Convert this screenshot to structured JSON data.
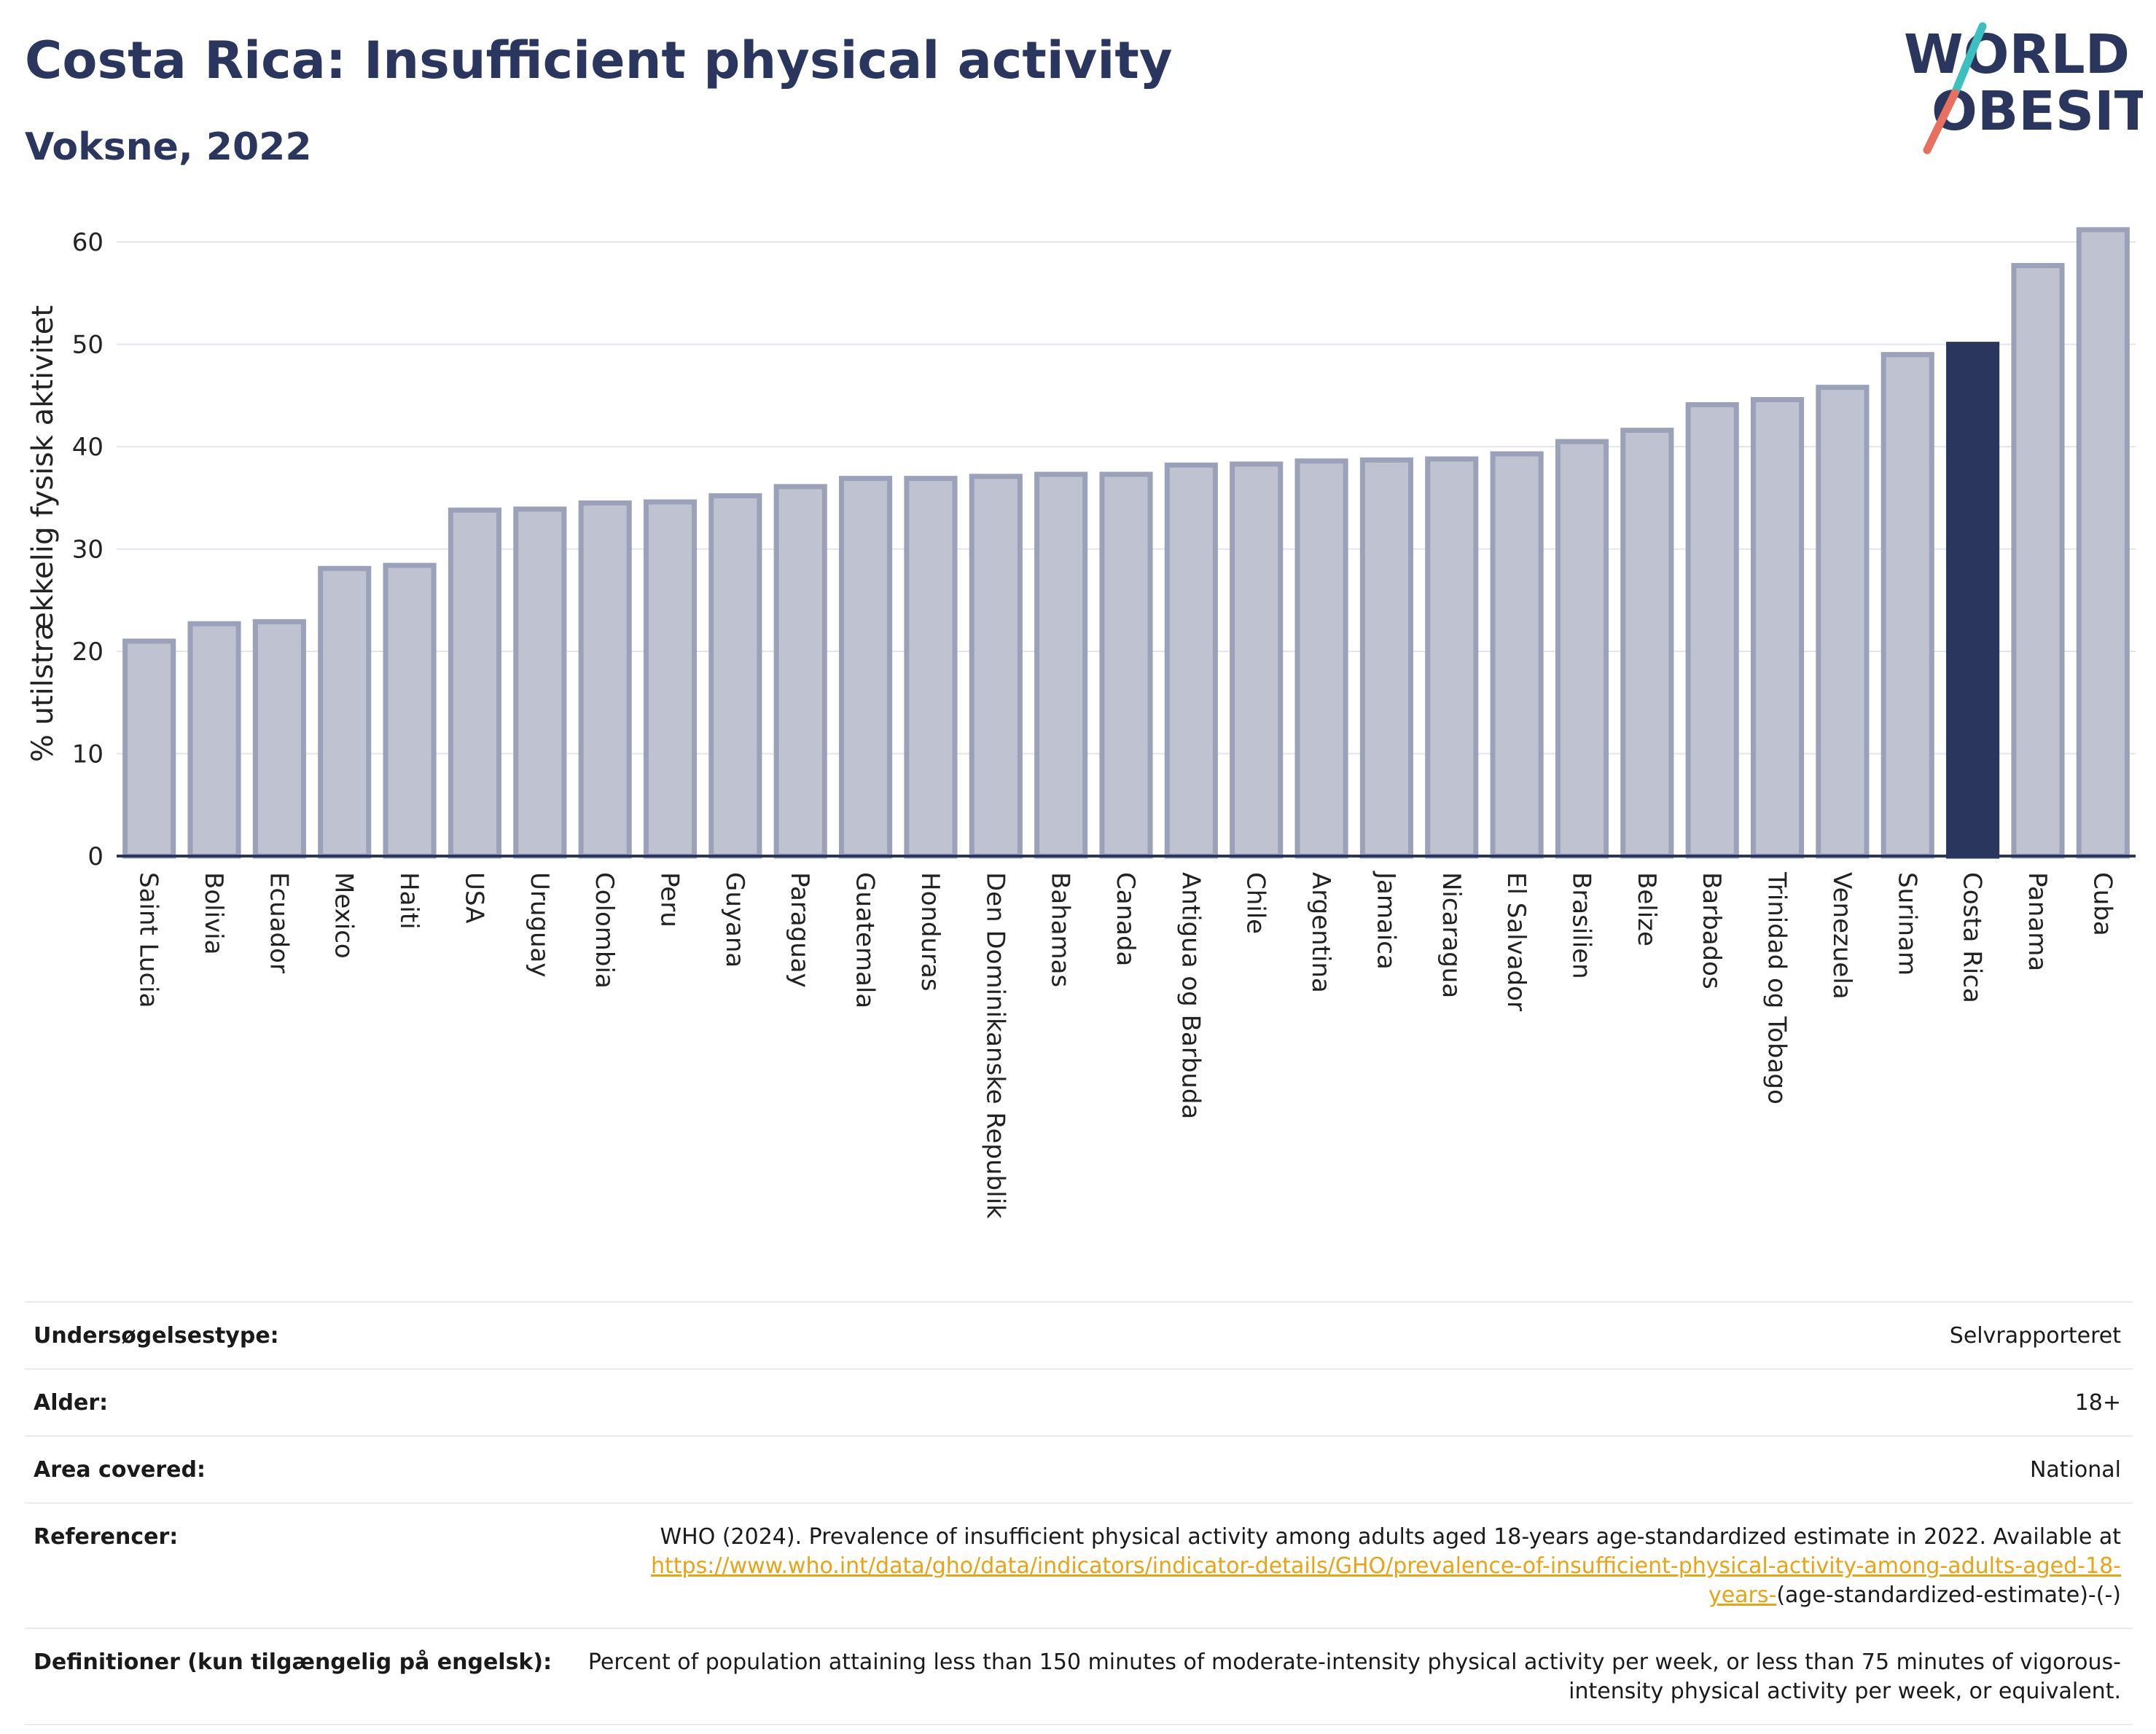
{
  "header": {
    "title": "Costa Rica: Insufficient physical activity",
    "subtitle": "Voksne, 2022"
  },
  "logo": {
    "line1": "WORLD",
    "line2": "OBESITY"
  },
  "colors": {
    "bar_fill": "#bfc3d1",
    "bar_stroke": "#9ba1b8",
    "highlight": "#2b365f",
    "title": "#2b365f",
    "link": "#e8a317",
    "logo_teal": "#3bbfbf",
    "logo_coral": "#e8705f"
  },
  "chart_data": {
    "type": "bar",
    "ylabel": "% utilstrækkelig fysisk aktivitet",
    "ylim": [
      0,
      63
    ],
    "yticks": [
      0,
      10,
      20,
      30,
      40,
      50,
      60
    ],
    "grid": true,
    "highlight": "Costa Rica",
    "categories": [
      "Saint Lucia",
      "Bolivia",
      "Ecuador",
      "Mexico",
      "Haiti",
      "USA",
      "Uruguay",
      "Colombia",
      "Peru",
      "Guyana",
      "Paraguay",
      "Guatemala",
      "Honduras",
      "Den Dominikanske Republik",
      "Bahamas",
      "Canada",
      "Antigua og Barbuda",
      "Chile",
      "Argentina",
      "Jamaica",
      "Nicaragua",
      "El Salvador",
      "Brasilien",
      "Belize",
      "Barbados",
      "Trinidad og Tobago",
      "Venezuela",
      "Surinam",
      "Costa Rica",
      "Panama",
      "Cuba"
    ],
    "values": [
      21.0,
      22.7,
      22.9,
      28.1,
      28.4,
      33.8,
      33.9,
      34.5,
      34.6,
      35.2,
      36.1,
      36.9,
      36.9,
      37.1,
      37.3,
      37.3,
      38.2,
      38.3,
      38.6,
      38.7,
      38.8,
      39.3,
      40.5,
      41.6,
      44.1,
      44.6,
      45.8,
      49.0,
      50.0,
      57.7,
      61.2
    ]
  },
  "info": {
    "survey_type": {
      "label": "Undersøgelsestype:",
      "value": "Selvrapporteret"
    },
    "age": {
      "label": "Alder:",
      "value": "18+"
    },
    "area": {
      "label": "Area covered:",
      "value": "National"
    },
    "references": {
      "label": "Referencer:",
      "text": "WHO (2024). Prevalence of insufficient physical activity among adults aged 18-years age-standardized estimate in 2022. Available at",
      "link": "https://www.who.int/data/gho/data/indicators/indicator-details/GHO/prevalence-of-insufficient-physical-activity-among-adults-aged-18-years-",
      "suffix": "(age-standardized-estimate)-(-)"
    },
    "definitions": {
      "label": "Definitioner (kun tilgængelig på engelsk):",
      "value": "Percent of population attaining less than 150 minutes of moderate-intensity physical activity per week, or less than 75 minutes of vigorous-intensity physical activity per week, or equivalent."
    }
  }
}
